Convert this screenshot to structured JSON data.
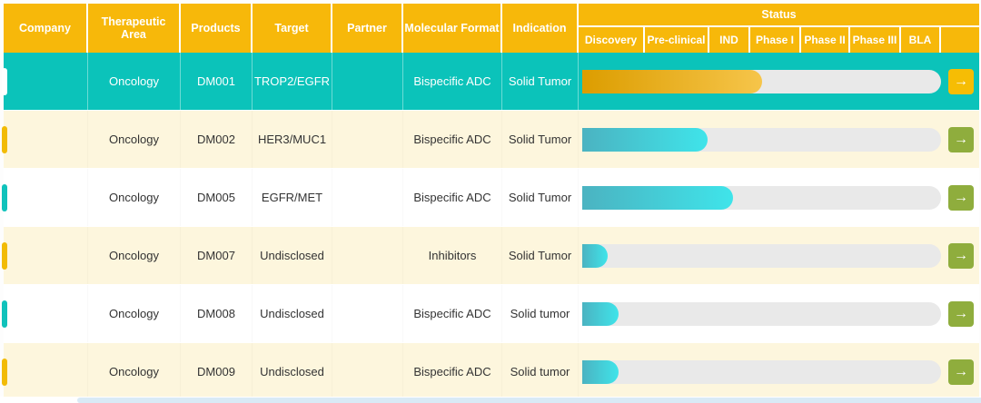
{
  "header": {
    "columns": [
      "Company",
      "Therapeutic Area",
      "Products",
      "Target",
      "Partner",
      "Molecular Format",
      "Indication"
    ],
    "status_label": "Status",
    "phases": [
      "Discovery",
      "Pre-clinical",
      "IND",
      "Phase I",
      "Phase II",
      "Phase III",
      "BLA"
    ]
  },
  "rows": [
    {
      "company": "",
      "therapeutic_area": "Oncology",
      "products": "DM001",
      "target": "TROP2/EGFR",
      "partner": "",
      "molecular_format": "Bispecific ADC",
      "indication": "Solid Tumor",
      "progress_percent": 50,
      "selected": true
    },
    {
      "company": "",
      "therapeutic_area": "Oncology",
      "products": "DM002",
      "target": "HER3/MUC1",
      "partner": "",
      "molecular_format": "Bispecific ADC",
      "indication": "Solid Tumor",
      "progress_percent": 35,
      "selected": false
    },
    {
      "company": "",
      "therapeutic_area": "Oncology",
      "products": "DM005",
      "target": "EGFR/MET",
      "partner": "",
      "molecular_format": "Bispecific ADC",
      "indication": "Solid Tumor",
      "progress_percent": 42,
      "selected": false
    },
    {
      "company": "",
      "therapeutic_area": "Oncology",
      "products": "DM007",
      "target": "Undisclosed",
      "partner": "",
      "molecular_format": "Inhibitors",
      "indication": "Solid Tumor",
      "progress_percent": 7,
      "selected": false
    },
    {
      "company": "",
      "therapeutic_area": "Oncology",
      "products": "DM008",
      "target": "Undisclosed",
      "partner": "",
      "molecular_format": "Bispecific ADC",
      "indication": "Solid tumor",
      "progress_percent": 10,
      "selected": false
    },
    {
      "company": "",
      "therapeutic_area": "Oncology",
      "products": "DM009",
      "target": "Undisclosed",
      "partner": "",
      "molecular_format": "Bispecific ADC",
      "indication": "Solid tumor",
      "progress_percent": 10,
      "selected": false
    }
  ],
  "icons": {
    "arrow_right": "→"
  },
  "colors": {
    "header_bg": "#F7B80A",
    "selected_row_bg": "#0BC3BA",
    "stripe_row_bg": "#FDF6DD",
    "white_row_bg": "#FFFFFF",
    "progress_track": "#E9E9E9",
    "progress_teal_start": "#4BB3C1",
    "progress_teal_end": "#3FE4EA",
    "progress_gold_start": "#DC9D00",
    "progress_gold_end": "#F6C54A",
    "arrow_button_gold": "#F6BD04",
    "arrow_button_olive": "#8FAD3D",
    "tab_gold": "#F2BB05",
    "tab_teal": "#10C2BB",
    "scrollbar_thumb": "#D9EAF6"
  }
}
